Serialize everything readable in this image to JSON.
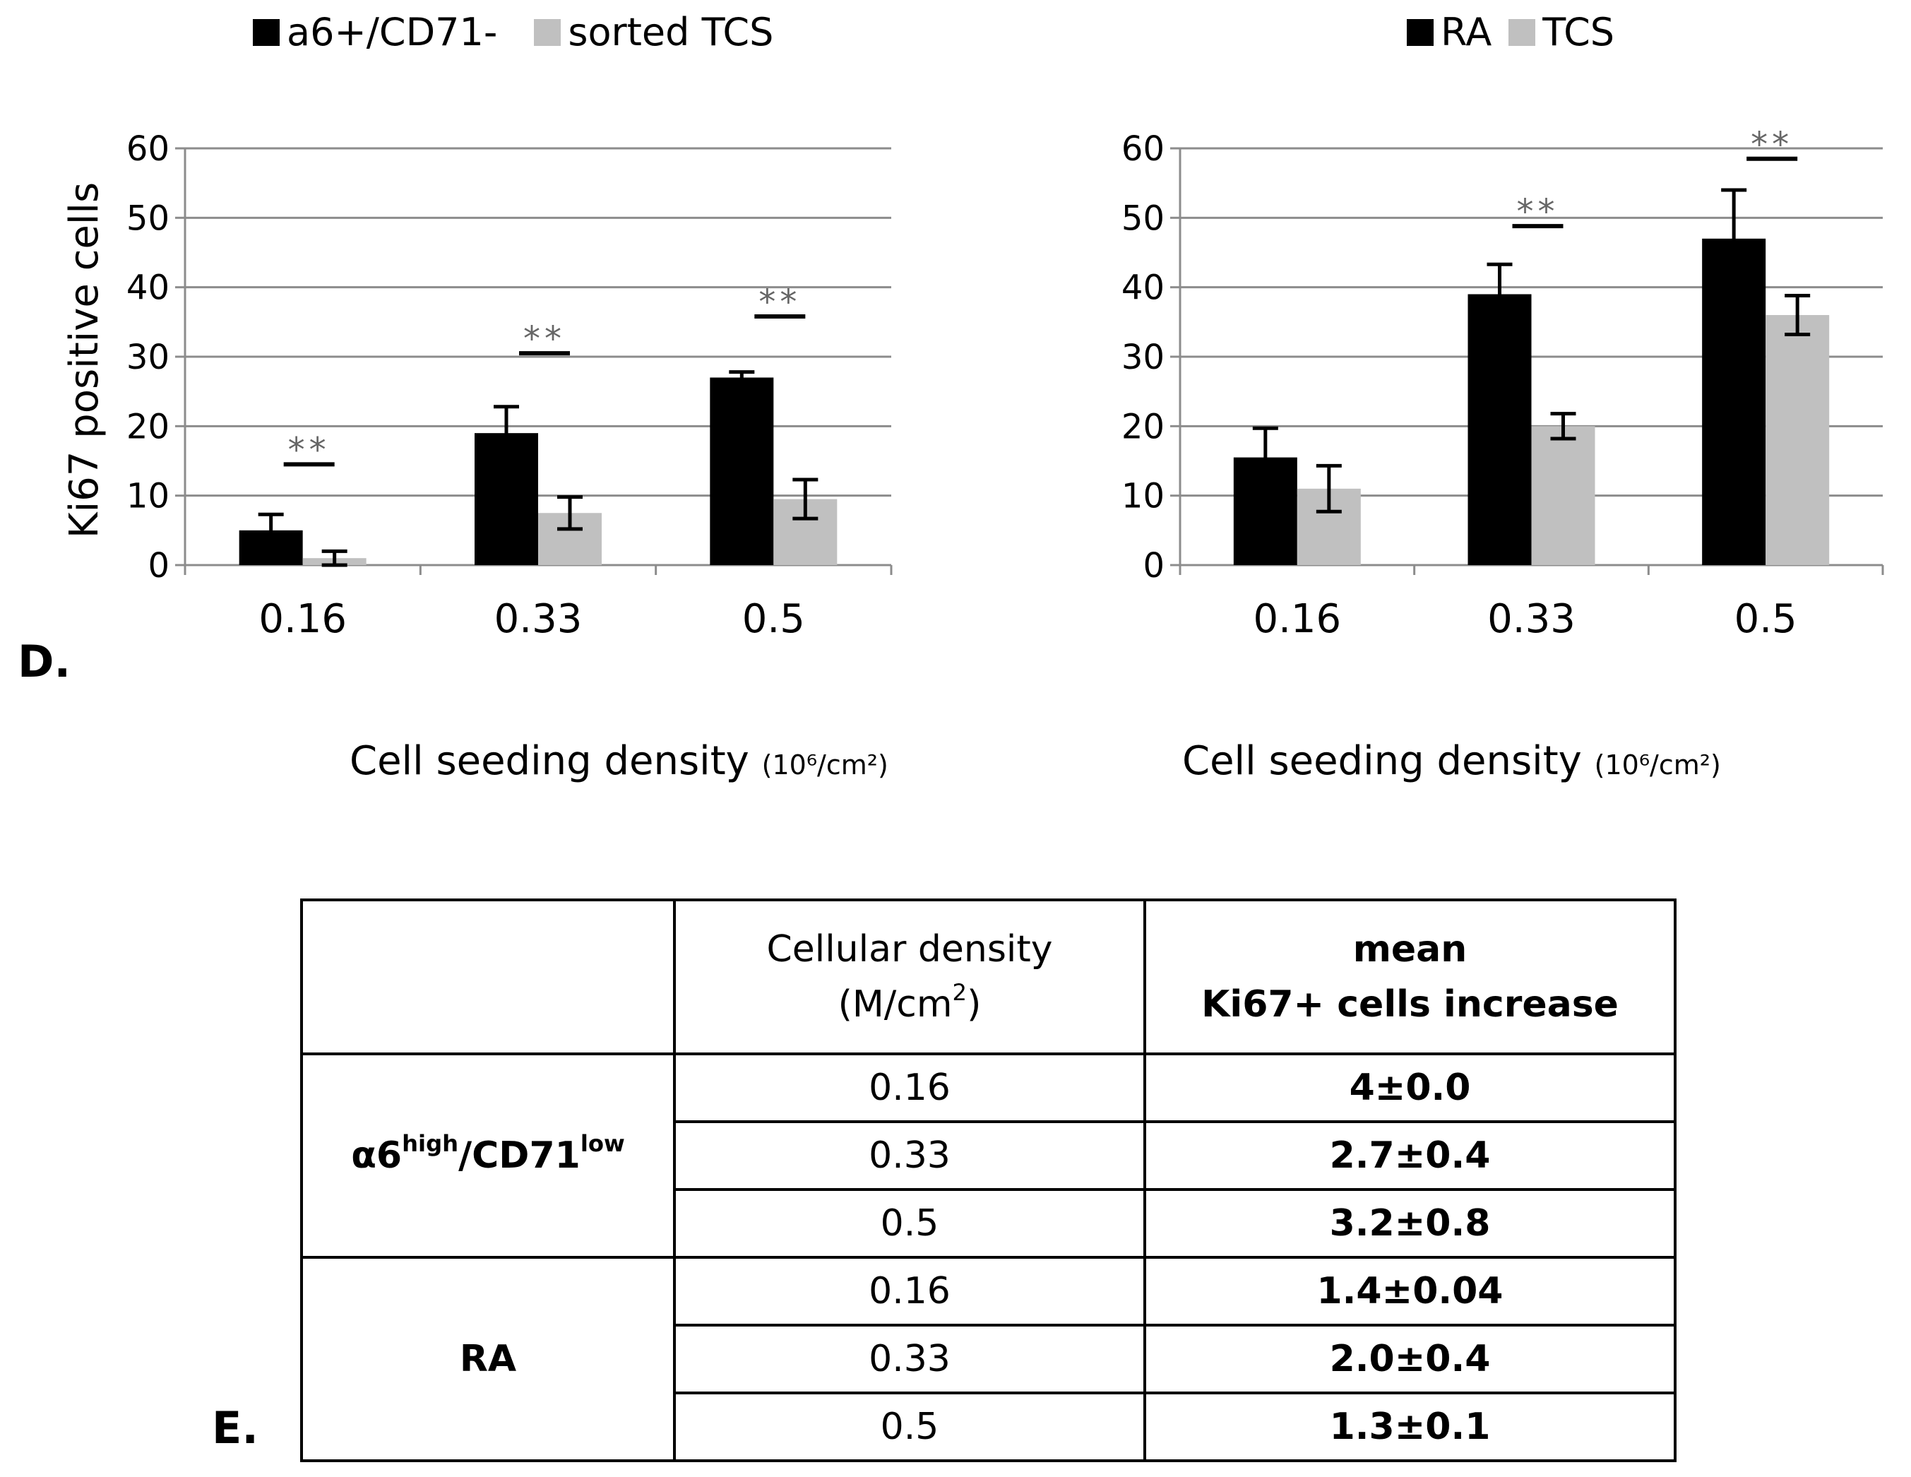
{
  "chart_data": [
    {
      "type": "bar",
      "title": "",
      "legend": [
        "a6+/CD71-",
        "sorted TCS"
      ],
      "categories": [
        "0.16",
        "0.33",
        "0.5"
      ],
      "series": [
        {
          "name": "a6+/CD71-",
          "color": "#000000",
          "values": [
            5,
            19,
            27
          ],
          "errors": [
            2.3,
            3.8,
            0.8
          ]
        },
        {
          "name": "sorted TCS",
          "color": "#c0c0c0",
          "values": [
            1,
            7.5,
            9.5
          ],
          "errors": [
            1.0,
            2.3,
            2.8
          ]
        }
      ],
      "ylabel": "Ki67 positive cells",
      "xlabel": "Cell seeding density",
      "xlabel_unit": "(10⁶/cm²)",
      "ylim": [
        0,
        60
      ],
      "yticks": [
        0,
        10,
        20,
        30,
        40,
        50,
        60
      ],
      "significance": [
        {
          "category": "0.16",
          "label": "**",
          "y": 14.5
        },
        {
          "category": "0.33",
          "label": "**",
          "y": 30.5
        },
        {
          "category": "0.5",
          "label": "**",
          "y": 35.8
        }
      ],
      "grid": true,
      "legend_position": "top"
    },
    {
      "type": "bar",
      "title": "",
      "legend": [
        "RA",
        "TCS"
      ],
      "categories": [
        "0.16",
        "0.33",
        "0.5"
      ],
      "series": [
        {
          "name": "RA",
          "color": "#000000",
          "values": [
            15.5,
            39,
            47
          ],
          "errors": [
            4.2,
            4.3,
            7.0
          ]
        },
        {
          "name": "TCS",
          "color": "#c0c0c0",
          "values": [
            11,
            20,
            36
          ],
          "errors": [
            3.3,
            1.8,
            2.8
          ]
        }
      ],
      "ylabel": "",
      "xlabel": "Cell seeding density",
      "xlabel_unit": "(10⁶/cm²)",
      "ylim": [
        0,
        60
      ],
      "yticks": [
        0,
        10,
        20,
        30,
        40,
        50,
        60
      ],
      "significance": [
        {
          "category": "0.33",
          "label": "**",
          "y": 48.8
        },
        {
          "category": "0.5",
          "label": "**",
          "y": 58.5
        }
      ],
      "grid": true,
      "legend_position": "top"
    }
  ],
  "panels": {
    "d": "D.",
    "e": "E."
  },
  "table": {
    "header": {
      "density_line1": "Cellular density",
      "density_line2_base": "(M/cm",
      "density_line2_sup": "2",
      "density_line2_end": ")",
      "mean_line1": "mean",
      "mean_line2": "Ki67+ cells increase"
    },
    "group1": {
      "prefix": "α6",
      "sup1": "high",
      "mid": "/CD71",
      "sup2": "low"
    },
    "group2": "RA",
    "rows": [
      {
        "density": "0.16",
        "mean": "4±0.0"
      },
      {
        "density": "0.33",
        "mean": "2.7±0.4"
      },
      {
        "density": "0.5",
        "mean": "3.2±0.8"
      },
      {
        "density": "0.16",
        "mean": "1.4±0.04"
      },
      {
        "density": "0.33",
        "mean": "2.0±0.4"
      },
      {
        "density": "0.5",
        "mean": "1.3±0.1"
      }
    ]
  }
}
